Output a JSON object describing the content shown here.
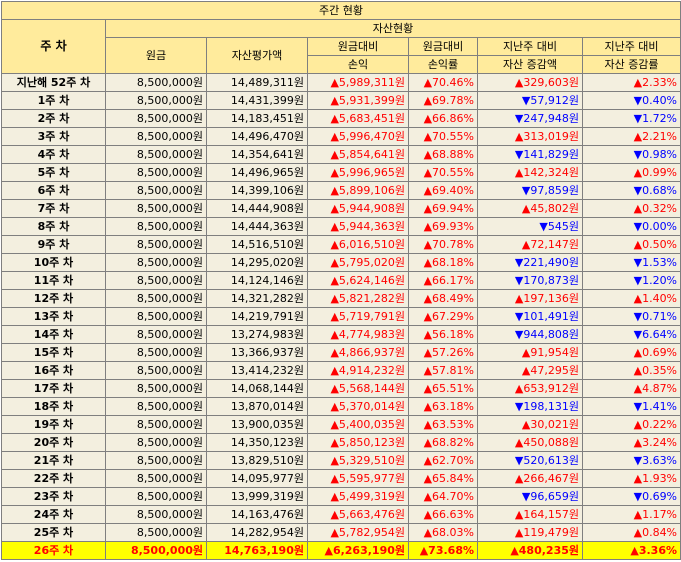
{
  "title": "주간 현황",
  "header": {
    "week_col": "주 차",
    "group": "자산현황",
    "principal": "원금",
    "valuation": "자산평가액",
    "pl_line1": "원금대비",
    "pl_line2": "손익",
    "rate_line1": "원금대비",
    "rate_line2": "손익률",
    "wow_amt_line1": "지난주 대비",
    "wow_amt_line2": "자산 증감액",
    "wow_pct_line1": "지난주 대비",
    "wow_pct_line2": "자산 증감률"
  },
  "rows": [
    {
      "week": "지난해 52주 차",
      "principal": "8,500,000원",
      "valuation": "14,489,311원",
      "pl": "▲5,989,311원",
      "rate": "▲70.46%",
      "chg": "▲329,603원",
      "chg_pct": "▲2.33%",
      "dir": "up"
    },
    {
      "week": "1주 차",
      "principal": "8,500,000원",
      "valuation": "14,431,399원",
      "pl": "▲5,931,399원",
      "rate": "▲69.78%",
      "chg": "▼57,912원",
      "chg_pct": "▼0.40%",
      "dir": "down"
    },
    {
      "week": "2주 차",
      "principal": "8,500,000원",
      "valuation": "14,183,451원",
      "pl": "▲5,683,451원",
      "rate": "▲66.86%",
      "chg": "▼247,948원",
      "chg_pct": "▼1.72%",
      "dir": "down"
    },
    {
      "week": "3주 차",
      "principal": "8,500,000원",
      "valuation": "14,496,470원",
      "pl": "▲5,996,470원",
      "rate": "▲70.55%",
      "chg": "▲313,019원",
      "chg_pct": "▲2.21%",
      "dir": "up"
    },
    {
      "week": "4주 차",
      "principal": "8,500,000원",
      "valuation": "14,354,641원",
      "pl": "▲5,854,641원",
      "rate": "▲68.88%",
      "chg": "▼141,829원",
      "chg_pct": "▼0.98%",
      "dir": "down"
    },
    {
      "week": "5주 차",
      "principal": "8,500,000원",
      "valuation": "14,496,965원",
      "pl": "▲5,996,965원",
      "rate": "▲70.55%",
      "chg": "▲142,324원",
      "chg_pct": "▲0.99%",
      "dir": "up"
    },
    {
      "week": "6주 차",
      "principal": "8,500,000원",
      "valuation": "14,399,106원",
      "pl": "▲5,899,106원",
      "rate": "▲69.40%",
      "chg": "▼97,859원",
      "chg_pct": "▼0.68%",
      "dir": "down"
    },
    {
      "week": "7주 차",
      "principal": "8,500,000원",
      "valuation": "14,444,908원",
      "pl": "▲5,944,908원",
      "rate": "▲69.94%",
      "chg": "▲45,802원",
      "chg_pct": "▲0.32%",
      "dir": "up"
    },
    {
      "week": "8주 차",
      "principal": "8,500,000원",
      "valuation": "14,444,363원",
      "pl": "▲5,944,363원",
      "rate": "▲69.93%",
      "chg": "▼545원",
      "chg_pct": "▼0.00%",
      "dir": "down"
    },
    {
      "week": "9주 차",
      "principal": "8,500,000원",
      "valuation": "14,516,510원",
      "pl": "▲6,016,510원",
      "rate": "▲70.78%",
      "chg": "▲72,147원",
      "chg_pct": "▲0.50%",
      "dir": "up"
    },
    {
      "week": "10주 차",
      "principal": "8,500,000원",
      "valuation": "14,295,020원",
      "pl": "▲5,795,020원",
      "rate": "▲68.18%",
      "chg": "▼221,490원",
      "chg_pct": "▼1.53%",
      "dir": "down"
    },
    {
      "week": "11주 차",
      "principal": "8,500,000원",
      "valuation": "14,124,146원",
      "pl": "▲5,624,146원",
      "rate": "▲66.17%",
      "chg": "▼170,873원",
      "chg_pct": "▼1.20%",
      "dir": "down"
    },
    {
      "week": "12주 차",
      "principal": "8,500,000원",
      "valuation": "14,321,282원",
      "pl": "▲5,821,282원",
      "rate": "▲68.49%",
      "chg": "▲197,136원",
      "chg_pct": "▲1.40%",
      "dir": "up"
    },
    {
      "week": "13주 차",
      "principal": "8,500,000원",
      "valuation": "14,219,791원",
      "pl": "▲5,719,791원",
      "rate": "▲67.29%",
      "chg": "▼101,491원",
      "chg_pct": "▼0.71%",
      "dir": "down"
    },
    {
      "week": "14주 차",
      "principal": "8,500,000원",
      "valuation": "13,274,983원",
      "pl": "▲4,774,983원",
      "rate": "▲56.18%",
      "chg": "▼944,808원",
      "chg_pct": "▼6.64%",
      "dir": "down"
    },
    {
      "week": "15주 차",
      "principal": "8,500,000원",
      "valuation": "13,366,937원",
      "pl": "▲4,866,937원",
      "rate": "▲57.26%",
      "chg": "▲91,954원",
      "chg_pct": "▲0.69%",
      "dir": "up"
    },
    {
      "week": "16주 차",
      "principal": "8,500,000원",
      "valuation": "13,414,232원",
      "pl": "▲4,914,232원",
      "rate": "▲57.81%",
      "chg": "▲47,295원",
      "chg_pct": "▲0.35%",
      "dir": "up"
    },
    {
      "week": "17주 차",
      "principal": "8,500,000원",
      "valuation": "14,068,144원",
      "pl": "▲5,568,144원",
      "rate": "▲65.51%",
      "chg": "▲653,912원",
      "chg_pct": "▲4.87%",
      "dir": "up"
    },
    {
      "week": "18주 차",
      "principal": "8,500,000원",
      "valuation": "13,870,014원",
      "pl": "▲5,370,014원",
      "rate": "▲63.18%",
      "chg": "▼198,131원",
      "chg_pct": "▼1.41%",
      "dir": "down"
    },
    {
      "week": "19주 차",
      "principal": "8,500,000원",
      "valuation": "13,900,035원",
      "pl": "▲5,400,035원",
      "rate": "▲63.53%",
      "chg": "▲30,021원",
      "chg_pct": "▲0.22%",
      "dir": "up"
    },
    {
      "week": "20주 차",
      "principal": "8,500,000원",
      "valuation": "14,350,123원",
      "pl": "▲5,850,123원",
      "rate": "▲68.82%",
      "chg": "▲450,088원",
      "chg_pct": "▲3.24%",
      "dir": "up"
    },
    {
      "week": "21주 차",
      "principal": "8,500,000원",
      "valuation": "13,829,510원",
      "pl": "▲5,329,510원",
      "rate": "▲62.70%",
      "chg": "▼520,613원",
      "chg_pct": "▼3.63%",
      "dir": "down"
    },
    {
      "week": "22주 차",
      "principal": "8,500,000원",
      "valuation": "14,095,977원",
      "pl": "▲5,595,977원",
      "rate": "▲65.84%",
      "chg": "▲266,467원",
      "chg_pct": "▲1.93%",
      "dir": "up"
    },
    {
      "week": "23주 차",
      "principal": "8,500,000원",
      "valuation": "13,999,319원",
      "pl": "▲5,499,319원",
      "rate": "▲64.70%",
      "chg": "▼96,659원",
      "chg_pct": "▼0.69%",
      "dir": "down"
    },
    {
      "week": "24주 차",
      "principal": "8,500,000원",
      "valuation": "14,163,476원",
      "pl": "▲5,663,476원",
      "rate": "▲66.63%",
      "chg": "▲164,157원",
      "chg_pct": "▲1.17%",
      "dir": "up"
    },
    {
      "week": "25주 차",
      "principal": "8,500,000원",
      "valuation": "14,282,954원",
      "pl": "▲5,782,954원",
      "rate": "▲68.03%",
      "chg": "▲119,479원",
      "chg_pct": "▲0.84%",
      "dir": "up"
    },
    {
      "week": "26주 차",
      "principal": "8,500,000원",
      "valuation": "14,763,190원",
      "pl": "▲6,263,190원",
      "rate": "▲73.68%",
      "chg": "▲480,235원",
      "chg_pct": "▲3.36%",
      "dir": "up",
      "current": true
    }
  ],
  "colors": {
    "up": "#ff0000",
    "down": "#0000ff",
    "header_bg": "#ffeb9c",
    "current_bg": "#ffff00"
  }
}
